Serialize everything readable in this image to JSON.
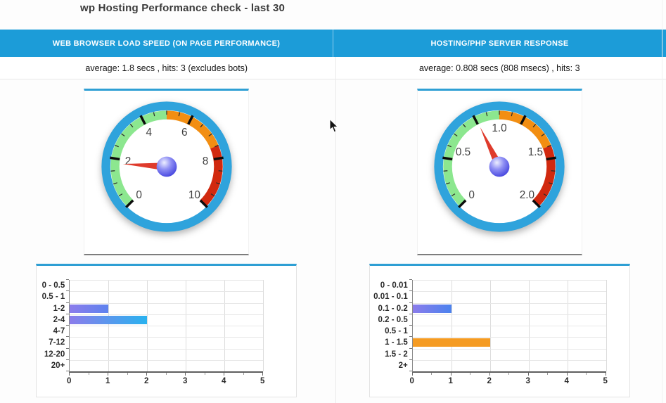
{
  "page": {
    "title": "wp Hosting Performance check - last 30"
  },
  "panels": [
    {
      "header": "WEB BROWSER LOAD SPEED (ON PAGE PERFORMANCE)",
      "subtitle": "average: 1.8 secs , hits: 3 (excludes bots)"
    },
    {
      "header": "HOSTING/PHP SERVER RESPONSE",
      "subtitle": "average: 0.808 secs (808 msecs) , hits: 3"
    }
  ],
  "colors": {
    "header_bg": "#1C9CD8",
    "accent_line": "#2E9FD4",
    "gauge_ring": "#2FA3DC",
    "band_green": "#8CE78F",
    "band_orange": "#F28E12",
    "band_red": "#D1290F",
    "needle_red": "#DF3B2C",
    "hub_blue": "#4A4AE8",
    "bar_purple": "#8B7CEB",
    "bar_cyan": "#29B2EF",
    "bar_orange": "#F59B22"
  },
  "icons": {
    "cursor": "arrow-pointer-icon"
  },
  "chart_data": [
    {
      "id": "gauge-left",
      "type": "gauge",
      "title": "WEB BROWSER LOAD SPEED (ON PAGE PERFORMANCE)",
      "value": 1.8,
      "min": 0,
      "max": 10,
      "major_ticks": [
        0,
        2,
        4,
        6,
        8,
        10
      ],
      "minor_tick_step": 0.5,
      "labels": [
        {
          "value": 0,
          "text": "0"
        },
        {
          "value": 2,
          "text": "2"
        },
        {
          "value": 4,
          "text": "4"
        },
        {
          "value": 6,
          "text": "6"
        },
        {
          "value": 8,
          "text": "8"
        },
        {
          "value": 10,
          "text": "10"
        }
      ],
      "bands": [
        {
          "from": 0,
          "to": 5,
          "color": "#8CE78F"
        },
        {
          "from": 5,
          "to": 7.5,
          "color": "#F28E12"
        },
        {
          "from": 7.5,
          "to": 10,
          "color": "#D1290F"
        }
      ],
      "colors": {
        "ring": "#2FA3DC",
        "needle": "#DF3B2C"
      }
    },
    {
      "id": "hist-left",
      "type": "bar",
      "orientation": "horizontal",
      "categories": [
        "0 - 0.5",
        "0.5 - 1",
        "1-2",
        "2-4",
        "4-7",
        "7-12",
        "12-20",
        "20+"
      ],
      "values": [
        0,
        0,
        1,
        2,
        0,
        0,
        0,
        0
      ],
      "xlim": [
        0,
        5
      ],
      "xticks": [
        0,
        1,
        2,
        3,
        4,
        5
      ],
      "grid": true,
      "ylabel_width": 46,
      "bar_fills": {
        "2": [
          "#8B7CEB",
          "#5E82EE"
        ],
        "3": [
          "#8B7CEB",
          "#29B2EF"
        ]
      }
    },
    {
      "id": "gauge-right",
      "type": "gauge",
      "title": "HOSTING/PHP SERVER RESPONSE",
      "value": 0.808,
      "min": 0,
      "max": 2,
      "major_ticks": [
        0,
        0.4,
        0.8,
        1.2,
        1.6,
        2
      ],
      "minor_tick_step": 0.1,
      "labels": [
        {
          "value": 0,
          "text": "0"
        },
        {
          "value": 0.5,
          "text": "0.5"
        },
        {
          "value": 1,
          "text": "1.0"
        },
        {
          "value": 1.5,
          "text": "1.5"
        },
        {
          "value": 2,
          "text": "2.0"
        }
      ],
      "bands": [
        {
          "from": 0,
          "to": 1,
          "color": "#8CE78F"
        },
        {
          "from": 1,
          "to": 1.5,
          "color": "#F28E12"
        },
        {
          "from": 1.5,
          "to": 2,
          "color": "#D1290F"
        }
      ],
      "colors": {
        "ring": "#2FA3DC",
        "needle": "#DF3B2C"
      }
    },
    {
      "id": "hist-right",
      "type": "bar",
      "orientation": "horizontal",
      "categories": [
        "0 - 0.01",
        "0.01 - 0.1",
        "0.1 - 0.2",
        "0.2 - 0.5",
        "0.5 - 1",
        "1 - 1.5",
        "1.5 - 2",
        "2+"
      ],
      "values": [
        0,
        0,
        1,
        0,
        0,
        2,
        0,
        0
      ],
      "xlim": [
        0,
        5
      ],
      "xticks": [
        0,
        1,
        2,
        3,
        4,
        5
      ],
      "grid": true,
      "ylabel_width": 60,
      "bar_fills": {
        "2": [
          "#8B7CEB",
          "#4B82EE"
        ],
        "5": [
          "#F59B22"
        ]
      }
    }
  ]
}
